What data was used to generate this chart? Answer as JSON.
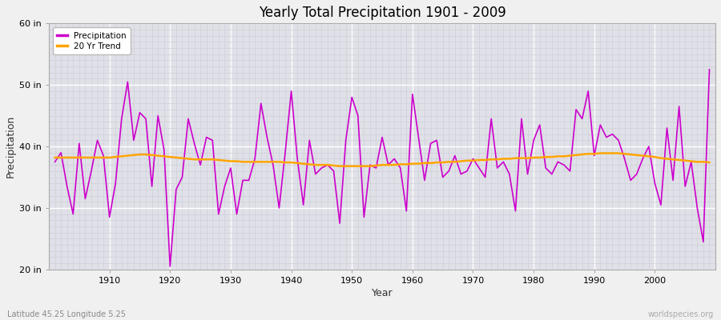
{
  "title": "Yearly Total Precipitation 1901 - 2009",
  "xlabel": "Year",
  "ylabel": "Precipitation",
  "subtitle": "Latitude 45.25 Longitude 5.25",
  "watermark": "worldspecies.org",
  "ylim": [
    20,
    60
  ],
  "yticks": [
    20,
    30,
    40,
    50,
    60
  ],
  "ytick_labels": [
    "20 in",
    "30 in",
    "40 in",
    "50 in",
    "60 in"
  ],
  "xlim": [
    1900,
    2010
  ],
  "xticks": [
    1910,
    1920,
    1930,
    1940,
    1950,
    1960,
    1970,
    1980,
    1990,
    2000
  ],
  "precip_color": "#cc00cc",
  "trend_color": "#FFA500",
  "bg_color": "#f0f0f0",
  "plot_bg_color": "#e0e0e8",
  "grid_major_color": "#ffffff",
  "grid_minor_color": "#d0d0d8",
  "years": [
    1901,
    1902,
    1903,
    1904,
    1905,
    1906,
    1907,
    1908,
    1909,
    1910,
    1911,
    1912,
    1913,
    1914,
    1915,
    1916,
    1917,
    1918,
    1919,
    1920,
    1921,
    1922,
    1923,
    1924,
    1925,
    1926,
    1927,
    1928,
    1929,
    1930,
    1931,
    1932,
    1933,
    1934,
    1935,
    1936,
    1937,
    1938,
    1939,
    1940,
    1941,
    1942,
    1943,
    1944,
    1945,
    1946,
    1947,
    1948,
    1949,
    1950,
    1951,
    1952,
    1953,
    1954,
    1955,
    1956,
    1957,
    1958,
    1959,
    1960,
    1961,
    1962,
    1963,
    1964,
    1965,
    1966,
    1967,
    1968,
    1969,
    1970,
    1971,
    1972,
    1973,
    1974,
    1975,
    1976,
    1977,
    1978,
    1979,
    1980,
    1981,
    1982,
    1983,
    1984,
    1985,
    1986,
    1987,
    1988,
    1989,
    1990,
    1991,
    1992,
    1993,
    1994,
    1995,
    1996,
    1997,
    1998,
    1999,
    2000,
    2001,
    2002,
    2003,
    2004,
    2005,
    2006,
    2007,
    2008,
    2009
  ],
  "precip": [
    37.5,
    39.0,
    33.5,
    29.0,
    40.5,
    31.5,
    36.0,
    41.0,
    38.5,
    28.5,
    34.0,
    44.5,
    50.5,
    41.0,
    45.5,
    44.5,
    33.5,
    45.0,
    39.5,
    20.5,
    33.0,
    35.0,
    44.5,
    40.5,
    37.0,
    41.5,
    41.0,
    29.0,
    33.5,
    36.5,
    29.0,
    34.5,
    34.5,
    38.0,
    47.0,
    41.5,
    37.0,
    30.0,
    39.0,
    49.0,
    38.0,
    30.5,
    41.0,
    35.5,
    36.5,
    37.0,
    36.0,
    27.5,
    41.0,
    48.0,
    45.0,
    28.5,
    37.0,
    36.5,
    41.5,
    37.0,
    38.0,
    36.5,
    29.5,
    48.5,
    41.5,
    34.5,
    40.5,
    41.0,
    35.0,
    36.0,
    38.5,
    35.5,
    36.0,
    38.0,
    36.5,
    35.0,
    44.5,
    36.5,
    37.5,
    35.5,
    29.5,
    44.5,
    35.5,
    41.0,
    43.5,
    36.5,
    35.5,
    37.5,
    37.0,
    36.0,
    46.0,
    44.5,
    49.0,
    38.5,
    43.5,
    41.5,
    42.0,
    41.0,
    38.0,
    34.5,
    35.5,
    38.0,
    40.0,
    34.0,
    30.5,
    43.0,
    34.5,
    46.5,
    33.5,
    37.5,
    30.0,
    24.5,
    52.5
  ],
  "trend": [
    38.2,
    38.2,
    38.2,
    38.2,
    38.2,
    38.2,
    38.2,
    38.2,
    38.2,
    38.2,
    38.3,
    38.4,
    38.5,
    38.6,
    38.7,
    38.7,
    38.6,
    38.5,
    38.4,
    38.3,
    38.2,
    38.1,
    38.0,
    37.9,
    37.9,
    37.9,
    37.9,
    37.8,
    37.7,
    37.6,
    37.6,
    37.5,
    37.5,
    37.5,
    37.5,
    37.5,
    37.5,
    37.5,
    37.4,
    37.4,
    37.3,
    37.2,
    37.1,
    37.0,
    37.0,
    37.0,
    36.9,
    36.8,
    36.8,
    36.8,
    36.8,
    36.8,
    36.8,
    36.9,
    37.0,
    37.0,
    37.0,
    37.1,
    37.1,
    37.2,
    37.2,
    37.3,
    37.3,
    37.4,
    37.4,
    37.5,
    37.5,
    37.6,
    37.7,
    37.7,
    37.8,
    37.8,
    37.9,
    37.9,
    38.0,
    38.0,
    38.1,
    38.1,
    38.1,
    38.2,
    38.2,
    38.3,
    38.3,
    38.4,
    38.4,
    38.5,
    38.6,
    38.7,
    38.8,
    38.8,
    38.9,
    38.9,
    38.9,
    38.9,
    38.8,
    38.7,
    38.6,
    38.5,
    38.4,
    38.3,
    38.1,
    38.0,
    37.9,
    37.8,
    37.7,
    37.6,
    37.5,
    37.5,
    37.4
  ]
}
